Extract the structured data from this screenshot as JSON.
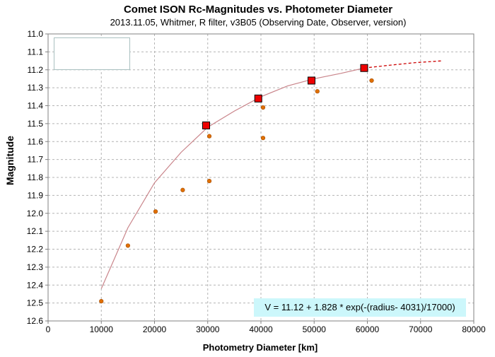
{
  "chart_data": {
    "type": "scatter",
    "title": "Comet ISON Rc-Magnitudes  vs. Photometer Diameter",
    "subtitle": "2013.11.05,  Whitmer, R filter, v3B05 (Observing Date, Observer, version)",
    "xlabel": "Photometry Diameter  [km]",
    "ylabel": "Magnitude",
    "xlim": [
      0,
      80000
    ],
    "ylim": [
      11.0,
      12.6
    ],
    "y_inverted": true,
    "grid": true,
    "x_ticks": [
      "0",
      "10000",
      "20000",
      "30000",
      "40000",
      "50000",
      "60000",
      "70000",
      "80000"
    ],
    "y_ticks": [
      "11.0",
      "11.1",
      "11.2",
      "11.3",
      "11.4",
      "11.5",
      "11.6",
      "11.7",
      "11.8",
      "11.9",
      "12.0",
      "12.1",
      "12.2",
      "12.3",
      "12.4",
      "12.5",
      "12.6"
    ],
    "annotation": "V = 11.12 + 1.828 * exp(-(radius- 4031)/17000)",
    "series": [
      {
        "marker": "circle",
        "color": "#e07000",
        "points": [
          {
            "x": 10000,
            "y": 12.49
          },
          {
            "x": 15000,
            "y": 12.18
          },
          {
            "x": 20200,
            "y": 11.99
          },
          {
            "x": 25300,
            "y": 11.87
          },
          {
            "x": 30300,
            "y": 11.57
          },
          {
            "x": 30300,
            "y": 11.82
          },
          {
            "x": 40400,
            "y": 11.41
          },
          {
            "x": 40400,
            "y": 11.58
          },
          {
            "x": 50600,
            "y": 11.32
          },
          {
            "x": 60800,
            "y": 11.26
          }
        ]
      },
      {
        "marker": "square",
        "color": "#ee0000",
        "points": [
          {
            "x": 29700,
            "y": 11.51
          },
          {
            "x": 39500,
            "y": 11.36
          },
          {
            "x": 49500,
            "y": 11.26
          },
          {
            "x": 59400,
            "y": 11.19
          }
        ]
      },
      {
        "line": "solid",
        "color": "#c9848a",
        "points": [
          {
            "x": 10000,
            "y": 12.42
          },
          {
            "x": 15000,
            "y": 12.08
          },
          {
            "x": 20000,
            "y": 11.83
          },
          {
            "x": 25000,
            "y": 11.66
          },
          {
            "x": 30000,
            "y": 11.52
          },
          {
            "x": 35000,
            "y": 11.43
          },
          {
            "x": 40000,
            "y": 11.35
          },
          {
            "x": 45000,
            "y": 11.29
          },
          {
            "x": 50000,
            "y": 11.25
          },
          {
            "x": 55000,
            "y": 11.22
          },
          {
            "x": 59400,
            "y": 11.19
          }
        ]
      },
      {
        "line": "dashed",
        "color": "#cc0000",
        "points": [
          {
            "x": 59400,
            "y": 11.19
          },
          {
            "x": 64000,
            "y": 11.175
          },
          {
            "x": 69000,
            "y": 11.16
          },
          {
            "x": 74000,
            "y": 11.15
          }
        ]
      }
    ]
  }
}
